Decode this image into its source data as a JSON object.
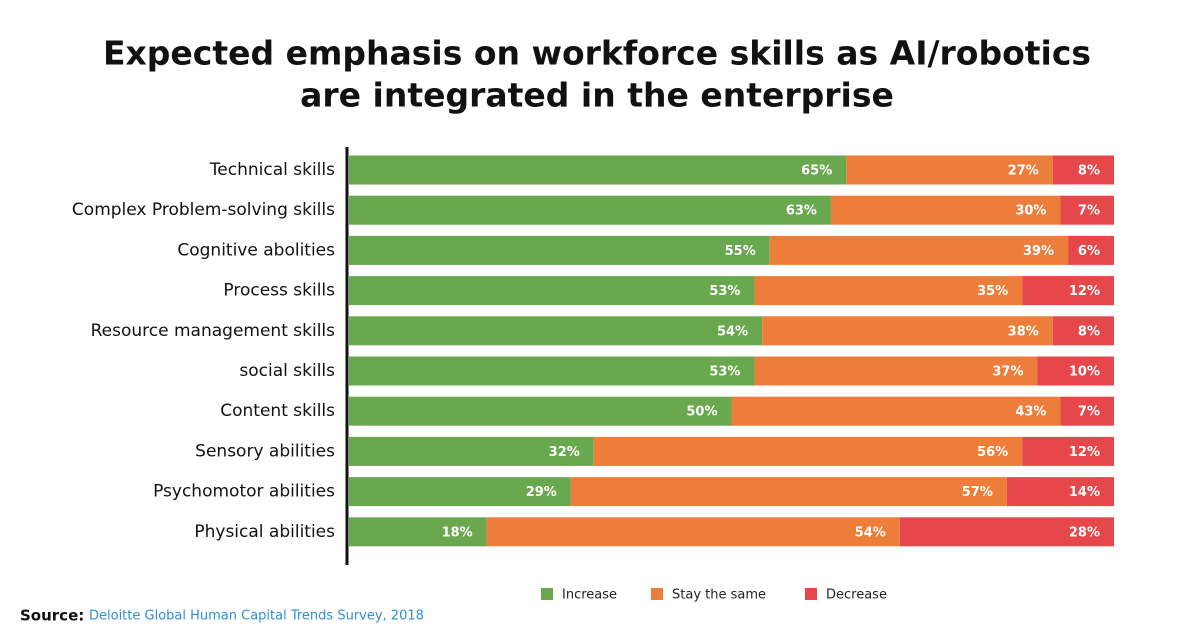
{
  "chart_data": {
    "type": "stacked-bar-horizontal",
    "title": [
      "Expected emphasis on workforce skills as AI/robotics",
      "are integrated in the enterprise"
    ],
    "categories": [
      "Technical skills",
      "Complex Problem-solving skills",
      "Cognitive abolities",
      "Process skills",
      "Resource management skills",
      "social skills",
      "Content skills",
      "Sensory abilities",
      "Psychomotor abilities",
      "Physical abilities"
    ],
    "series": [
      {
        "name": "Increase",
        "color": "#6aa84f",
        "values": [
          65,
          63,
          55,
          53,
          54,
          53,
          50,
          32,
          29,
          18
        ],
        "value_labels": [
          "65%",
          "63%",
          "55%",
          "53%",
          "54%",
          "53%",
          "50%",
          "32%",
          "29%",
          "18%"
        ]
      },
      {
        "name": "Stay the same",
        "color": "#ed7d3b",
        "values": [
          27,
          30,
          39,
          35,
          38,
          37,
          43,
          56,
          57,
          54
        ],
        "value_labels": [
          "27%",
          "30%",
          "39%",
          "35%",
          "38%",
          "37%",
          "43%",
          "56%",
          "57%",
          "54%"
        ]
      },
      {
        "name": "Decrease",
        "color": "#e5474b",
        "values": [
          8,
          7,
          6,
          12,
          8,
          10,
          7,
          12,
          14,
          28
        ],
        "value_labels": [
          "8%",
          "7%",
          "6%",
          "12%",
          "8%",
          "10%",
          "7%",
          "12%",
          "14%",
          "28%"
        ]
      }
    ],
    "xlim": [
      0,
      100
    ],
    "source_label": "Source:",
    "source": "Deloitte Global Human Capital Trends Survey, 2018"
  }
}
